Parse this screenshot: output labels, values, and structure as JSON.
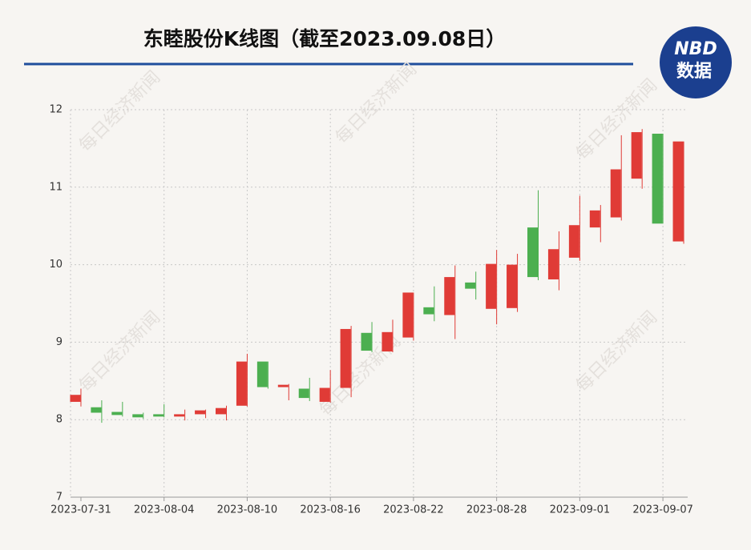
{
  "chart_data": {
    "type": "candlestick",
    "title": "东睦股份K线图（截至2023.09.08日）",
    "categories": [
      "2023-07-31",
      null,
      null,
      null,
      "2023-08-04",
      null,
      null,
      null,
      "2023-08-10",
      null,
      null,
      null,
      "2023-08-16",
      null,
      null,
      null,
      "2023-08-22",
      null,
      null,
      null,
      "2023-08-28",
      null,
      null,
      null,
      "2023-09-01",
      null,
      null,
      null,
      "2023-09-07",
      null
    ],
    "open": [
      8.23,
      8.16,
      8.1,
      8.07,
      8.07,
      8.04,
      8.07,
      8.07,
      8.18,
      8.75,
      8.42,
      8.4,
      8.23,
      8.41,
      9.12,
      8.88,
      9.06,
      9.45,
      9.35,
      9.77,
      9.43,
      9.44,
      10.48,
      9.81,
      10.09,
      10.48,
      10.61,
      11.11,
      11.69,
      10.3
    ],
    "high": [
      8.4,
      8.25,
      8.23,
      8.09,
      8.2,
      8.13,
      8.13,
      8.18,
      8.85,
      8.75,
      8.46,
      8.54,
      8.64,
      9.21,
      9.26,
      9.29,
      9.64,
      9.72,
      9.99,
      9.91,
      10.19,
      10.14,
      10.96,
      10.43,
      10.89,
      10.77,
      11.67,
      11.75,
      11.69,
      11.59
    ],
    "low": [
      8.17,
      7.96,
      8.04,
      8.01,
      8.03,
      7.99,
      8.02,
      7.99,
      8.17,
      8.4,
      8.25,
      8.24,
      8.22,
      8.29,
      8.87,
      8.87,
      9.02,
      9.27,
      9.04,
      9.55,
      9.23,
      9.39,
      9.8,
      9.67,
      10.05,
      10.29,
      10.57,
      10.98,
      10.53,
      10.27
    ],
    "close": [
      8.32,
      8.09,
      8.06,
      8.03,
      8.04,
      8.07,
      8.12,
      8.15,
      8.75,
      8.42,
      8.45,
      8.28,
      8.41,
      9.17,
      8.89,
      9.13,
      9.64,
      9.36,
      9.84,
      9.69,
      10.01,
      10.0,
      9.84,
      10.2,
      10.51,
      10.7,
      11.23,
      11.71,
      10.53,
      11.59
    ],
    "up_color": "#e03b36",
    "down_color": "#4caf50",
    "ylim": [
      7,
      12
    ],
    "yticks": [
      7,
      8,
      9,
      10,
      11,
      12
    ],
    "grid": true
  },
  "logo": {
    "top": "NBD",
    "bottom": "数据"
  },
  "watermark": "每日经济新闻"
}
